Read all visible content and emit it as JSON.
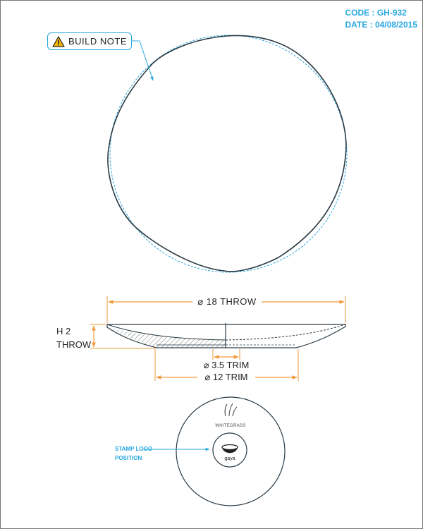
{
  "header": {
    "code": "CODE : GH-932",
    "date": "DATE : 04/08/2015"
  },
  "build_note": {
    "label": "BUILD NOTE",
    "icon": "warning-triangle-icon"
  },
  "dimensions": {
    "outer_diameter": "⌀ 18 THROW",
    "height_line1": "H 2",
    "height_line2": "THROW",
    "inner_small": "⌀ 3.5 TRIM",
    "inner_base": "⌀ 12 TRIM"
  },
  "stamp": {
    "label_line1": "STAMP LOGO",
    "label_line2": "POSITION",
    "brand": "WHITEGRASS",
    "logo_text": "gaya"
  },
  "colors": {
    "accent": "#29a8e0",
    "dimension": "#f39a3c",
    "outline": "#2a3a44"
  }
}
